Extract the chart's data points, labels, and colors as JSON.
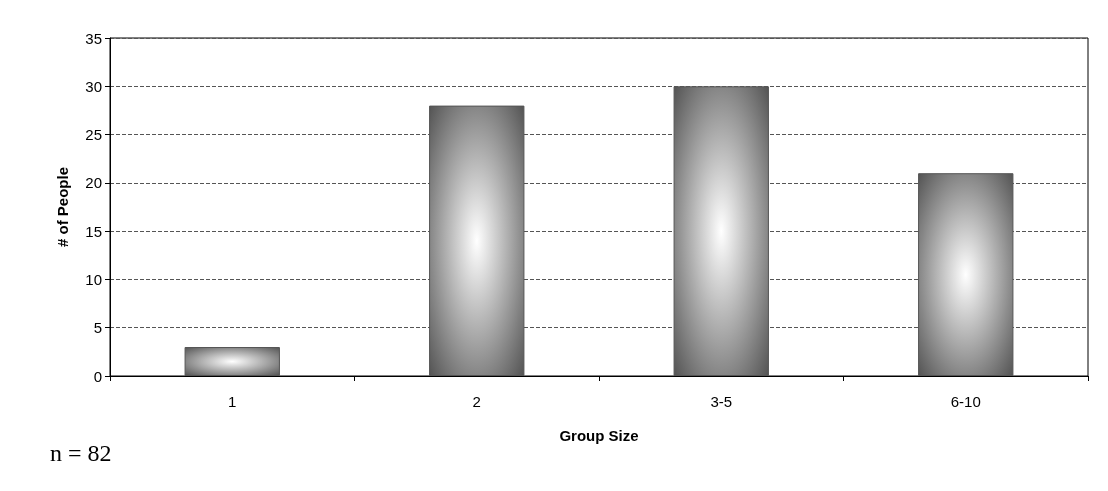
{
  "chart_data": {
    "type": "bar",
    "xlabel": "Group Size",
    "ylabel": "# of People",
    "categories": [
      "1",
      "2",
      "3-5",
      "6-10"
    ],
    "values": [
      3,
      28,
      30,
      21
    ],
    "color": "#555555",
    "ylim": [
      0,
      35
    ],
    "yticks": [
      0,
      5,
      10,
      15,
      20,
      25,
      30,
      35
    ],
    "grid": "y",
    "line_style": "dashed",
    "annotations": [
      "n = 82"
    ]
  }
}
